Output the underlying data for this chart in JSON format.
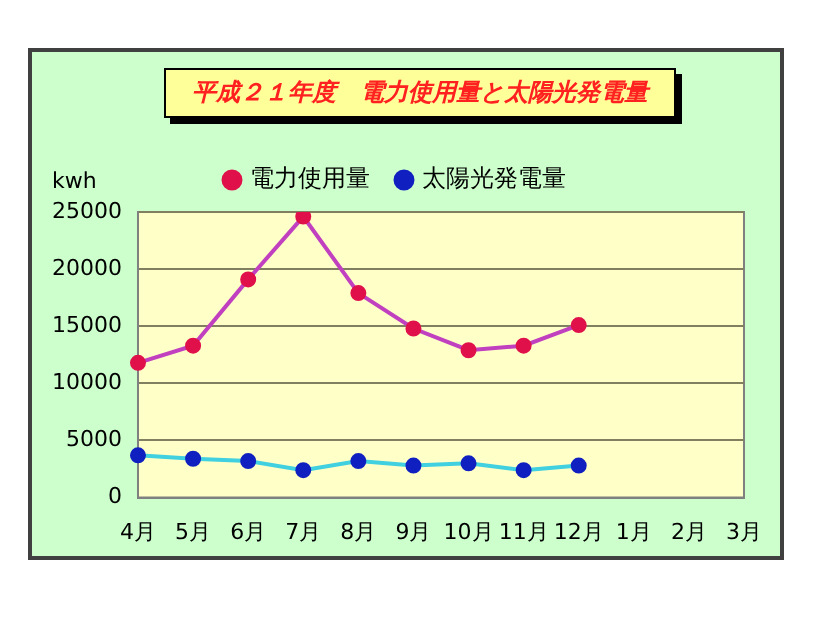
{
  "chart_data": {
    "type": "line",
    "title": "平成２１年度　電力使用量と太陽光発電量",
    "ylabel": "kwh",
    "categories": [
      "4月",
      "5月",
      "6月",
      "7月",
      "8月",
      "9月",
      "10月",
      "11月",
      "12月",
      "1月",
      "2月",
      "3月"
    ],
    "series": [
      {
        "name": "電力使用量",
        "color": "#e0104a",
        "values": [
          11800,
          13300,
          19100,
          24600,
          17900,
          14800,
          12900,
          13300,
          15100,
          null,
          null,
          null
        ]
      },
      {
        "name": "太陽光発電量",
        "color": "#1020c0",
        "values": [
          3700,
          3400,
          3200,
          2400,
          3200,
          2800,
          3000,
          2400,
          2800,
          null,
          null,
          null
        ]
      }
    ],
    "ylim": [
      0,
      25000
    ],
    "yticks": [
      0,
      5000,
      10000,
      15000,
      20000,
      25000
    ],
    "grid": "y",
    "legend": "top",
    "marker": "circle",
    "line_style": "solid"
  }
}
